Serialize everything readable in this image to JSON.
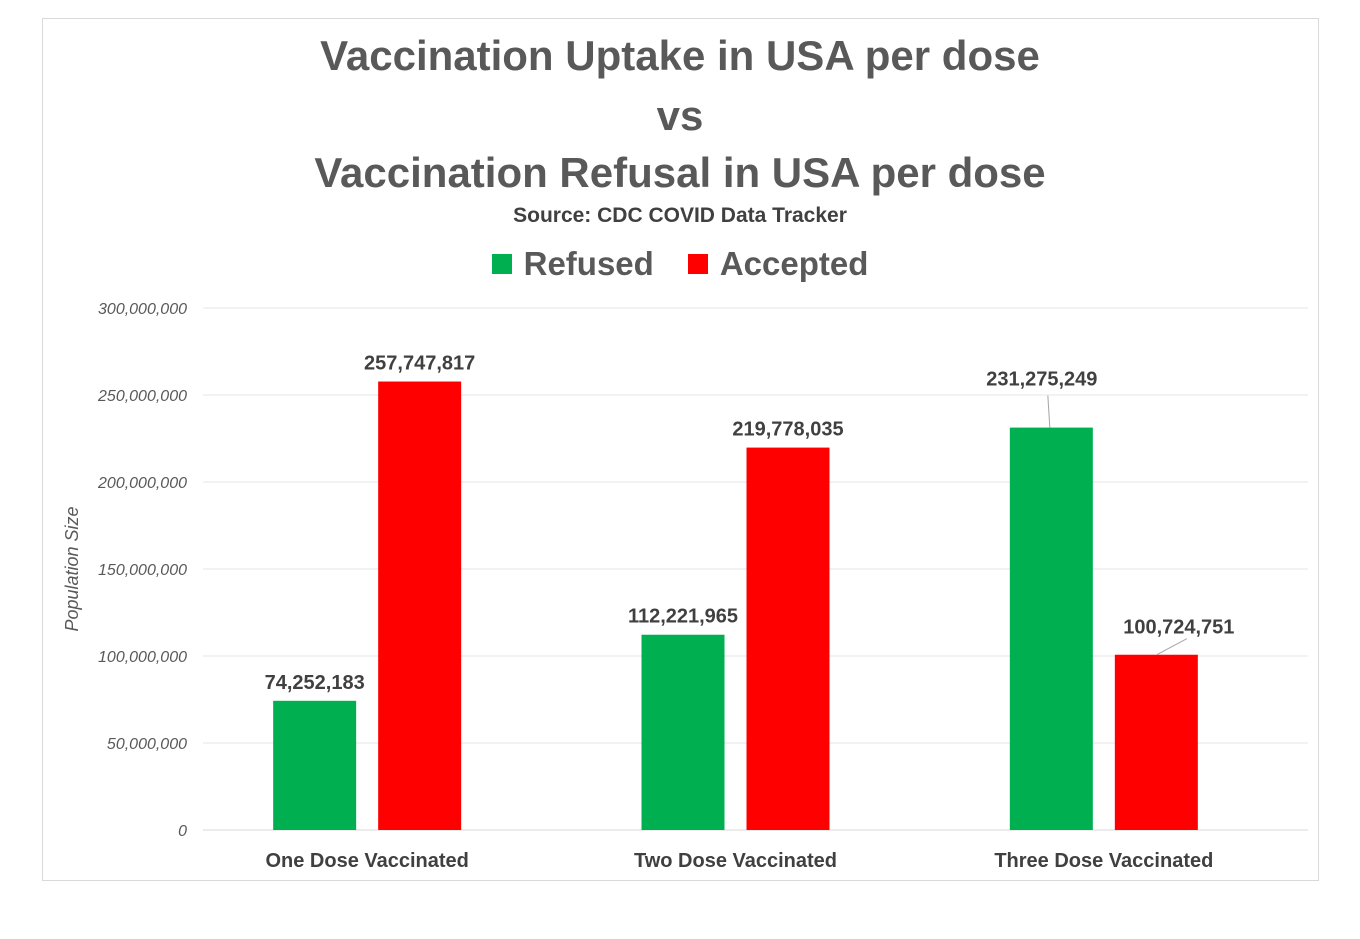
{
  "chart_data": {
    "type": "bar",
    "title_lines": [
      "Vaccination Uptake in USA per dose",
      "vs",
      "Vaccination Refusal in USA per dose"
    ],
    "subtitle": "Source: CDC COVID Data Tracker",
    "xlabel": "",
    "ylabel": "Population Size",
    "ylim": [
      0,
      300000000
    ],
    "yticks": [
      0,
      50000000,
      100000000,
      150000000,
      200000000,
      250000000,
      300000000
    ],
    "ytick_labels": [
      "0",
      "50,000,000",
      "100,000,000",
      "150,000,000",
      "200,000,000",
      "250,000,000",
      "300,000,000"
    ],
    "grid": true,
    "legend_position": "top",
    "categories": [
      "One Dose Vaccinated",
      "Two Dose Vaccinated",
      "Three Dose Vaccinated"
    ],
    "series": [
      {
        "name": "Refused",
        "color": "#00b050",
        "values": [
          74252183,
          112221965,
          231275249
        ],
        "labels": [
          "74,252,183",
          "112,221,965",
          "231,275,249"
        ]
      },
      {
        "name": "Accepted",
        "color": "#ff0000",
        "values": [
          257747817,
          219778035,
          100724751
        ],
        "labels": [
          "257,747,817",
          "219,778,035",
          "100,724,751"
        ]
      }
    ]
  }
}
